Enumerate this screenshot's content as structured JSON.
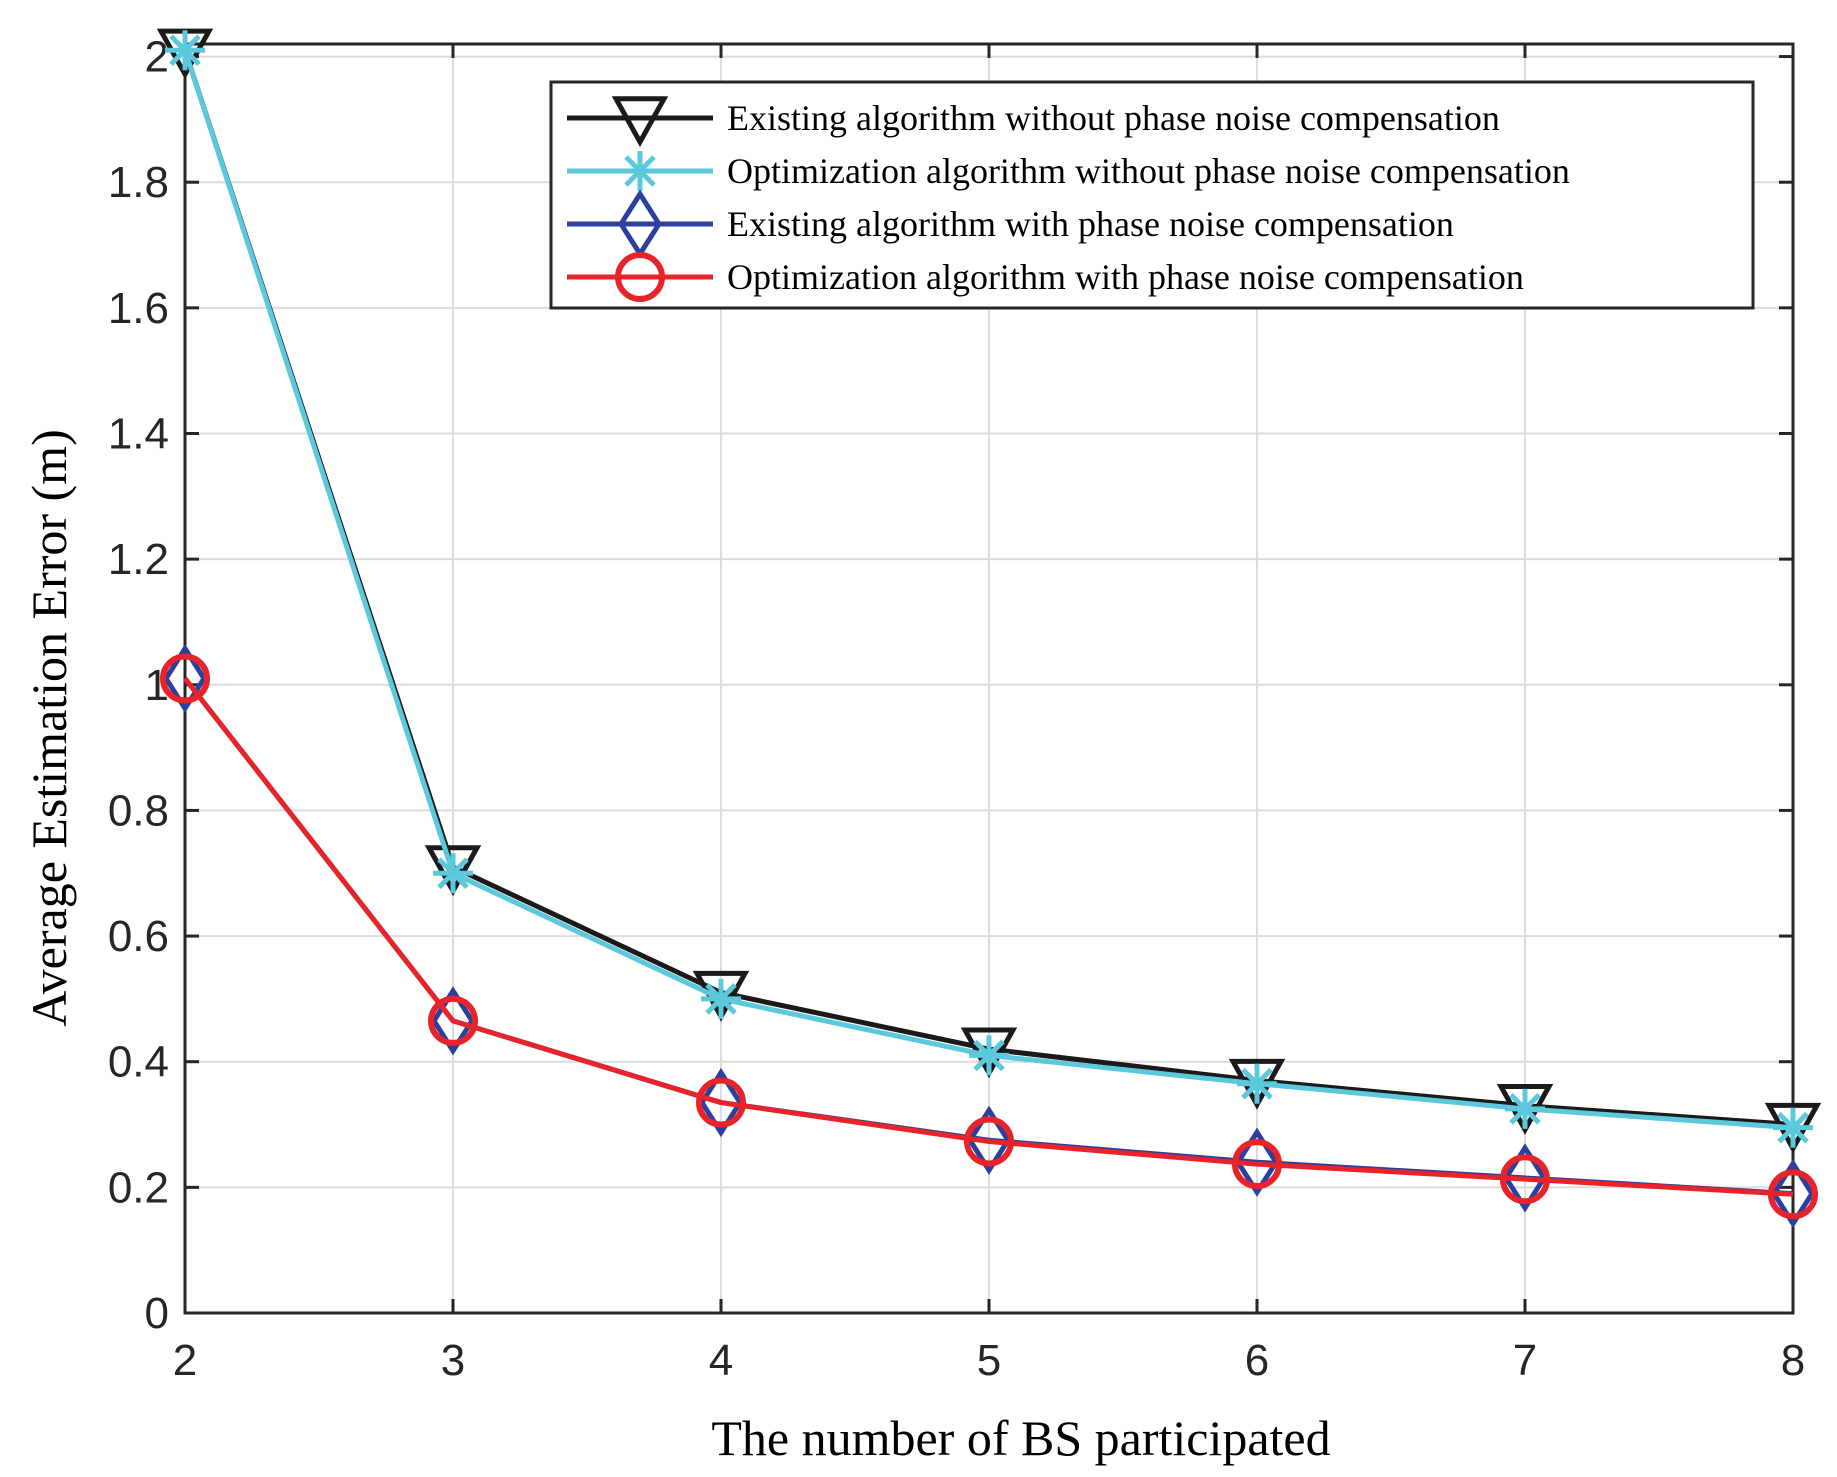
{
  "chart_data": {
    "type": "line",
    "title": "",
    "xlabel": "The number of BS participated",
    "ylabel": "Average Estimation Error (m)",
    "x": [
      2,
      3,
      4,
      5,
      6,
      7,
      8
    ],
    "xlim": [
      2,
      8
    ],
    "ylim": [
      0,
      2.02
    ],
    "xticks": [
      2,
      3,
      4,
      5,
      6,
      7,
      8
    ],
    "yticks": [
      0,
      0.2,
      0.4,
      0.6,
      0.8,
      1,
      1.2,
      1.4,
      1.6,
      1.8,
      2
    ],
    "ytick_labels": [
      "0",
      "0.2",
      "0.4",
      "0.6",
      "0.8",
      "1",
      "1.2",
      "1.4",
      "1.6",
      "1.8",
      "2"
    ],
    "grid": true,
    "legend_position": "top-right",
    "series": [
      {
        "name": "Existing algorithm without phase noise compensation",
        "color": "#1a1a1a",
        "marker": "triangle-down",
        "values": [
          2.01,
          0.71,
          0.51,
          0.42,
          0.37,
          0.33,
          0.3
        ]
      },
      {
        "name": "Optimization algorithm without phase noise compensation",
        "color": "#5bc8dc",
        "marker": "asterisk",
        "values": [
          2.01,
          0.7,
          0.5,
          0.41,
          0.365,
          0.325,
          0.295
        ]
      },
      {
        "name": "Existing algorithm with phase noise compensation",
        "color": "#2a3f9e",
        "marker": "diamond",
        "values": [
          1.01,
          0.465,
          0.335,
          0.275,
          0.24,
          0.215,
          0.19
        ]
      },
      {
        "name": "Optimization algorithm with phase noise compensation",
        "color": "#e8232a",
        "marker": "circle",
        "values": [
          1.01,
          0.465,
          0.335,
          0.273,
          0.237,
          0.213,
          0.189
        ]
      }
    ]
  }
}
